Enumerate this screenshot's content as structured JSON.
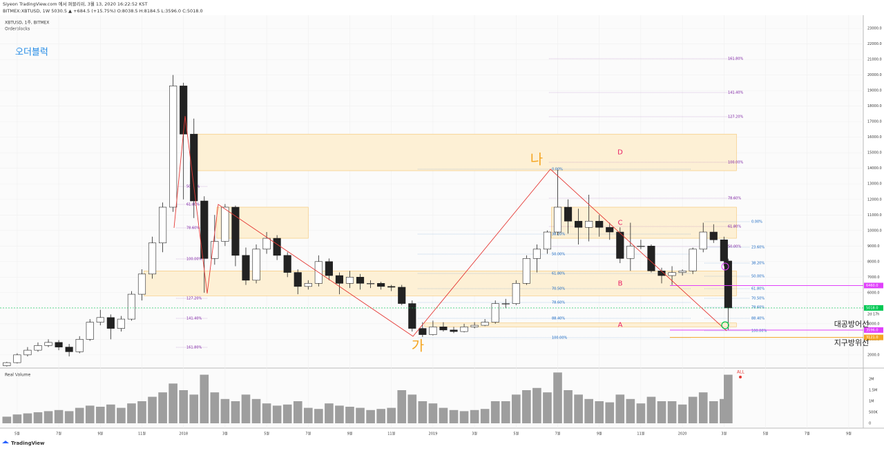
{
  "header": {
    "publisher": "Siyeon TradingView.com 에서 퍼블리쉬, 3월 13, 2020 16:22:52 KST",
    "symbol_line": "BITMEX:XBTUSD, 1W 5030.5 ▲ +684.5 (+15.75%) O:8038.5 H:8184.5 L:3596.0 C:5018.0"
  },
  "chart_data": {
    "type": "candlestick",
    "symbol": "XBTUSD, 1주, BITMEX",
    "indicator": "Orderblocks",
    "title": "오더블럭",
    "volume_title": "Real Volume",
    "volume_badge": "ALL",
    "up_color": "#ffffff",
    "down_color": "#222222",
    "volume_color": "#9e9e9e",
    "x": [
      -0.5,
      0,
      0.5,
      1,
      1.5,
      2,
      2.5,
      3,
      3.5,
      4,
      4.5,
      5,
      5.5,
      6,
      6.5,
      7,
      7.5,
      8,
      8.5,
      9,
      9.5,
      10,
      10.5,
      11,
      11.5,
      12,
      12.5,
      13,
      13.5,
      14,
      14.5,
      15,
      15.5,
      16,
      16.5,
      17,
      17.5,
      18,
      18.5,
      19,
      19.5,
      20,
      20.5,
      21,
      21.5,
      22,
      22.5,
      23,
      23.5,
      24,
      24.5,
      25,
      25.5,
      26,
      26.5,
      27,
      27.5,
      28,
      28.5,
      29,
      29.5,
      30,
      30.5,
      31,
      31.5,
      32,
      32.5,
      33,
      33.5,
      34,
      34.2
    ],
    "open": [
      1300,
      1500,
      2000,
      2300,
      2600,
      2800,
      2500,
      2200,
      3000,
      4100,
      4400,
      3700,
      4300,
      5900,
      7200,
      9200,
      11500,
      19300,
      16200,
      11900,
      8200,
      9300,
      11500,
      8400,
      6800,
      8800,
      9500,
      8400,
      7300,
      6400,
      6600,
      8000,
      7100,
      6600,
      7000,
      6600,
      6600,
      6400,
      6350,
      5300,
      3700,
      3300,
      3800,
      3600,
      3500,
      3800,
      3900,
      4100,
      5300,
      5300,
      6600,
      8200,
      8800,
      9900,
      11500,
      10600,
      10200,
      10600,
      10200,
      9900,
      8200,
      9000,
      9000,
      7400,
      7100,
      7300,
      7400,
      8800,
      9900,
      9400,
      8038.5
    ],
    "high": [
      1550,
      2100,
      2500,
      2800,
      3000,
      2950,
      2700,
      3200,
      4300,
      4900,
      4600,
      4500,
      6100,
      7500,
      9600,
      11800,
      20000,
      19500,
      17200,
      12200,
      11000,
      11700,
      11600,
      8900,
      9100,
      9900,
      9700,
      8600,
      7500,
      6800,
      8400,
      8200,
      7300,
      7400,
      7200,
      6800,
      6700,
      6500,
      6500,
      5500,
      4100,
      4200,
      4100,
      3800,
      4000,
      4100,
      4300,
      5500,
      5600,
      6800,
      8400,
      9100,
      10000,
      13900,
      12000,
      11400,
      12300,
      11000,
      10500,
      10200,
      10500,
      9400,
      9100,
      7600,
      7700,
      7500,
      8900,
      10500,
      10400,
      9600,
      8184.5
    ],
    "low": [
      1250,
      1450,
      1900,
      2200,
      2500,
      2300,
      1900,
      2100,
      2900,
      3900,
      3000,
      3500,
      4200,
      5500,
      6900,
      8600,
      11200,
      12000,
      10800,
      6000,
      7800,
      9000,
      7700,
      6500,
      6600,
      8500,
      8100,
      7000,
      5900,
      6200,
      6400,
      6800,
      5900,
      6300,
      6200,
      6300,
      6200,
      6100,
      5200,
      3500,
      3150,
      3250,
      3500,
      3400,
      3450,
      3700,
      3850,
      4000,
      5000,
      5200,
      6500,
      7300,
      8500,
      9700,
      9800,
      9100,
      9300,
      9600,
      9400,
      7900,
      7400,
      8800,
      7300,
      6600,
      6500,
      7100,
      7200,
      8600,
      9200,
      7700,
      3596
    ],
    "close": [
      1500,
      2000,
      2300,
      2600,
      2800,
      2500,
      2200,
      3000,
      4100,
      4400,
      3700,
      4300,
      5900,
      7200,
      9200,
      11500,
      19300,
      16200,
      11900,
      8200,
      9300,
      11500,
      8400,
      6800,
      8800,
      9500,
      8400,
      7300,
      6400,
      6600,
      8000,
      7100,
      6600,
      7000,
      6600,
      6600,
      6400,
      6350,
      5300,
      3700,
      3300,
      3800,
      3600,
      3500,
      3800,
      3900,
      4100,
      5300,
      5300,
      6600,
      8200,
      8800,
      9900,
      11500,
      10600,
      10200,
      10600,
      10200,
      9900,
      8200,
      9000,
      9000,
      7400,
      7100,
      7300,
      7400,
      8800,
      9900,
      9400,
      8038.5,
      5018
    ],
    "volume": [
      300000,
      400000,
      450000,
      500000,
      550000,
      600000,
      550000,
      700000,
      800000,
      750000,
      850000,
      700000,
      900000,
      1000000,
      1200000,
      1400000,
      1800000,
      1500000,
      1300000,
      2200000,
      1400000,
      1100000,
      1000000,
      1300000,
      1100000,
      900000,
      800000,
      850000,
      1000000,
      700000,
      650000,
      900000,
      800000,
      750000,
      700000,
      600000,
      650000,
      700000,
      1500000,
      1300000,
      1000000,
      900000,
      700000,
      600000,
      550000,
      600000,
      650000,
      1000000,
      1000000,
      1300000,
      1500000,
      1600000,
      1400000,
      2300000,
      1500000,
      1300000,
      1100000,
      1000000,
      950000,
      1300000,
      1100000,
      900000,
      1200000,
      1000000,
      1000000,
      850000,
      1200000,
      1400000,
      1000000,
      1100000,
      2200000
    ],
    "xlim": [
      -0.76,
      40.7
    ],
    "xticks": [
      {
        "value": 0,
        "label": "5월"
      },
      {
        "value": 2,
        "label": "7월"
      },
      {
        "value": 4,
        "label": "9월"
      },
      {
        "value": 6,
        "label": "11월"
      },
      {
        "value": 8,
        "label": "2018"
      },
      {
        "value": 10,
        "label": "3월"
      },
      {
        "value": 12,
        "label": "5월"
      },
      {
        "value": 14,
        "label": "7월"
      },
      {
        "value": 16,
        "label": "9월"
      },
      {
        "value": 18,
        "label": "11월"
      },
      {
        "value": 20,
        "label": "2019"
      },
      {
        "value": 22,
        "label": "3월"
      },
      {
        "value": 24,
        "label": "5월"
      },
      {
        "value": 26,
        "label": "7월"
      },
      {
        "value": 28,
        "label": "9월"
      },
      {
        "value": 30,
        "label": "11월"
      },
      {
        "value": 32,
        "label": "2020"
      },
      {
        "value": 34,
        "label": "3월"
      },
      {
        "value": 36,
        "label": "5월"
      },
      {
        "value": 38,
        "label": "7월"
      },
      {
        "value": 40,
        "label": "9월"
      }
    ],
    "ylim": [
      1150,
      23850
    ],
    "yticks": [
      {
        "value": 2000,
        "label": "2000.0"
      },
      {
        "value": 3000,
        "label": "3000.0"
      },
      {
        "value": 4000,
        "label": "4000.0"
      },
      {
        "value": 5000,
        "label": "5000.0"
      },
      {
        "value": 6000,
        "label": "6000.0"
      },
      {
        "value": 7000,
        "label": "7000.0"
      },
      {
        "value": 8000,
        "label": "8000.0"
      },
      {
        "value": 9000,
        "label": "9000.0"
      },
      {
        "value": 10000,
        "label": "10000.0"
      },
      {
        "value": 11000,
        "label": "11000.0"
      },
      {
        "value": 12000,
        "label": "12000.0"
      },
      {
        "value": 13000,
        "label": "13000.0"
      },
      {
        "value": 14000,
        "label": "14000.0"
      },
      {
        "value": 15000,
        "label": "15000.0"
      },
      {
        "value": 16000,
        "label": "16000.0"
      },
      {
        "value": 17000,
        "label": "17000.0"
      },
      {
        "value": 18000,
        "label": "18000.0"
      },
      {
        "value": 19000,
        "label": "19000.0"
      },
      {
        "value": 20000,
        "label": "20000.0"
      },
      {
        "value": 21000,
        "label": "21000.0"
      },
      {
        "value": 22000,
        "label": "22000.0"
      },
      {
        "value": 23000,
        "label": "23000.0"
      }
    ],
    "vlim": [
      0,
      2375000
    ],
    "vticks": [
      {
        "value": 0,
        "label": "0"
      },
      {
        "value": 500000,
        "label": "500K"
      },
      {
        "value": 1000000,
        "label": "1M"
      },
      {
        "value": 1500000,
        "label": "1.5M"
      },
      {
        "value": 2000000,
        "label": "2M"
      }
    ],
    "zones": [
      {
        "label": "D",
        "low": 13850,
        "high": 16200,
        "x": [
          8.5,
          34.6
        ]
      },
      {
        "low": 9500,
        "high": 11500,
        "x": [
          9.6,
          14
        ]
      },
      {
        "label": "C",
        "low": 9500,
        "high": 11500,
        "x": [
          25.7,
          34.6
        ]
      },
      {
        "label": "B",
        "low": 5800,
        "high": 7400,
        "x": [
          6.1,
          34.6
        ]
      },
      {
        "label": "A",
        "low": 3800,
        "high": 4050,
        "x": [
          19.6,
          34.6
        ]
      }
    ],
    "zone_color": "#fdf0d5",
    "price_markers": [
      {
        "value": 6460,
        "label": "6460.0",
        "color": "#e040fb"
      },
      {
        "value": 5018,
        "label": "5018.0",
        "color": "#00c853"
      },
      {
        "value": 3596,
        "label": "3596.0",
        "color": "#e040fb"
      },
      {
        "value": 3121,
        "label": "3121.0",
        "color": "#f5a623"
      }
    ],
    "countdown": "2d 17h",
    "annotations": {
      "ga": "가",
      "na": "나",
      "air_defense": "대공방어선",
      "earth_defense": "지구방위선"
    },
    "fib_left": [
      "50.00%",
      "61.80%",
      "78.60%",
      "100.00%",
      "127.20%",
      "141.40%",
      "161.80%"
    ],
    "fib_mid": [
      "0.00%",
      "38.20%",
      "50.00%",
      "61.80%",
      "70.50%",
      "78.60%",
      "88.40%",
      "100.00%"
    ],
    "fib_right": [
      "161.80%",
      "141.40%",
      "127.20%",
      "100.00%",
      "78.60%",
      "61.80%",
      "50.00%"
    ],
    "fib_far": [
      "0.00%",
      "23.60%",
      "38.20%",
      "50.00%",
      "61.80%",
      "70.50%",
      "78.60%",
      "88.40%",
      "100.00%"
    ]
  },
  "footer": {
    "brand": "TradingView"
  }
}
